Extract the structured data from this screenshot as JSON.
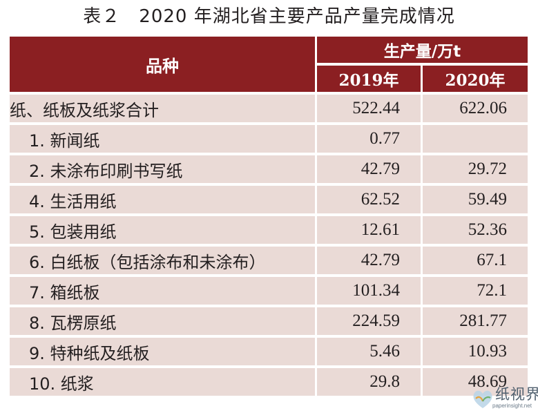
{
  "title": "表２　2020 年湖北省主要产品产量完成情况",
  "header": {
    "item_label": "品种",
    "group_label": "生产量/万t",
    "years": [
      "2019年",
      "2020年"
    ]
  },
  "rows": [
    {
      "name": "纸、纸板及纸浆合计",
      "v2019": "522.44",
      "v2020": "622.06"
    },
    {
      "name": "1. 新闻纸",
      "v2019": "0.77",
      "v2020": ""
    },
    {
      "name": "2. 未涂布印刷书写纸",
      "v2019": "42.79",
      "v2020": "29.72"
    },
    {
      "name": "4. 生活用纸",
      "v2019": "62.52",
      "v2020": "59.49"
    },
    {
      "name": "5. 包装用纸",
      "v2019": "12.61",
      "v2020": "52.36"
    },
    {
      "name": "6. 白纸板（包括涂布和未涂布）",
      "v2019": "42.79",
      "v2020": "67.1"
    },
    {
      "name": "7. 箱纸板",
      "v2019": "101.34",
      "v2020": "72.1"
    },
    {
      "name": "8. 瓦楞原纸",
      "v2019": "224.59",
      "v2020": "281.77"
    },
    {
      "name": "9. 特种纸及纸板",
      "v2019": "5.46",
      "v2020": "10.93"
    },
    {
      "name": "10. 纸浆",
      "v2019": "29.8",
      "v2020": "48.69"
    }
  ],
  "watermark": {
    "brand": "纸视界",
    "url": "paperinsight.net"
  },
  "colors": {
    "header_bg": "#8b1f22",
    "row_bg": "#eadad6",
    "text": "#231f20"
  }
}
